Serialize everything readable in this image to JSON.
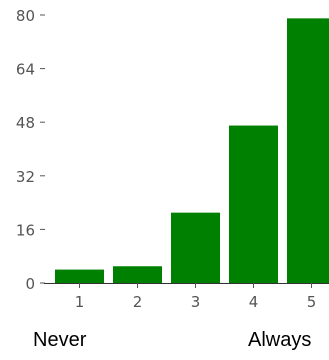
{
  "chart_data": {
    "type": "bar",
    "categories": [
      "1",
      "2",
      "3",
      "4",
      "5"
    ],
    "values": [
      4,
      5,
      21,
      47,
      79
    ],
    "ylim": [
      0,
      80
    ],
    "yticks": [
      "0",
      "16",
      "32",
      "48",
      "64",
      "80"
    ],
    "grid": false,
    "bar_color": "#008000",
    "axis_color": "#333333",
    "tick_color": "#555555"
  },
  "scale_labels": {
    "low": "Never",
    "high": "Always"
  }
}
